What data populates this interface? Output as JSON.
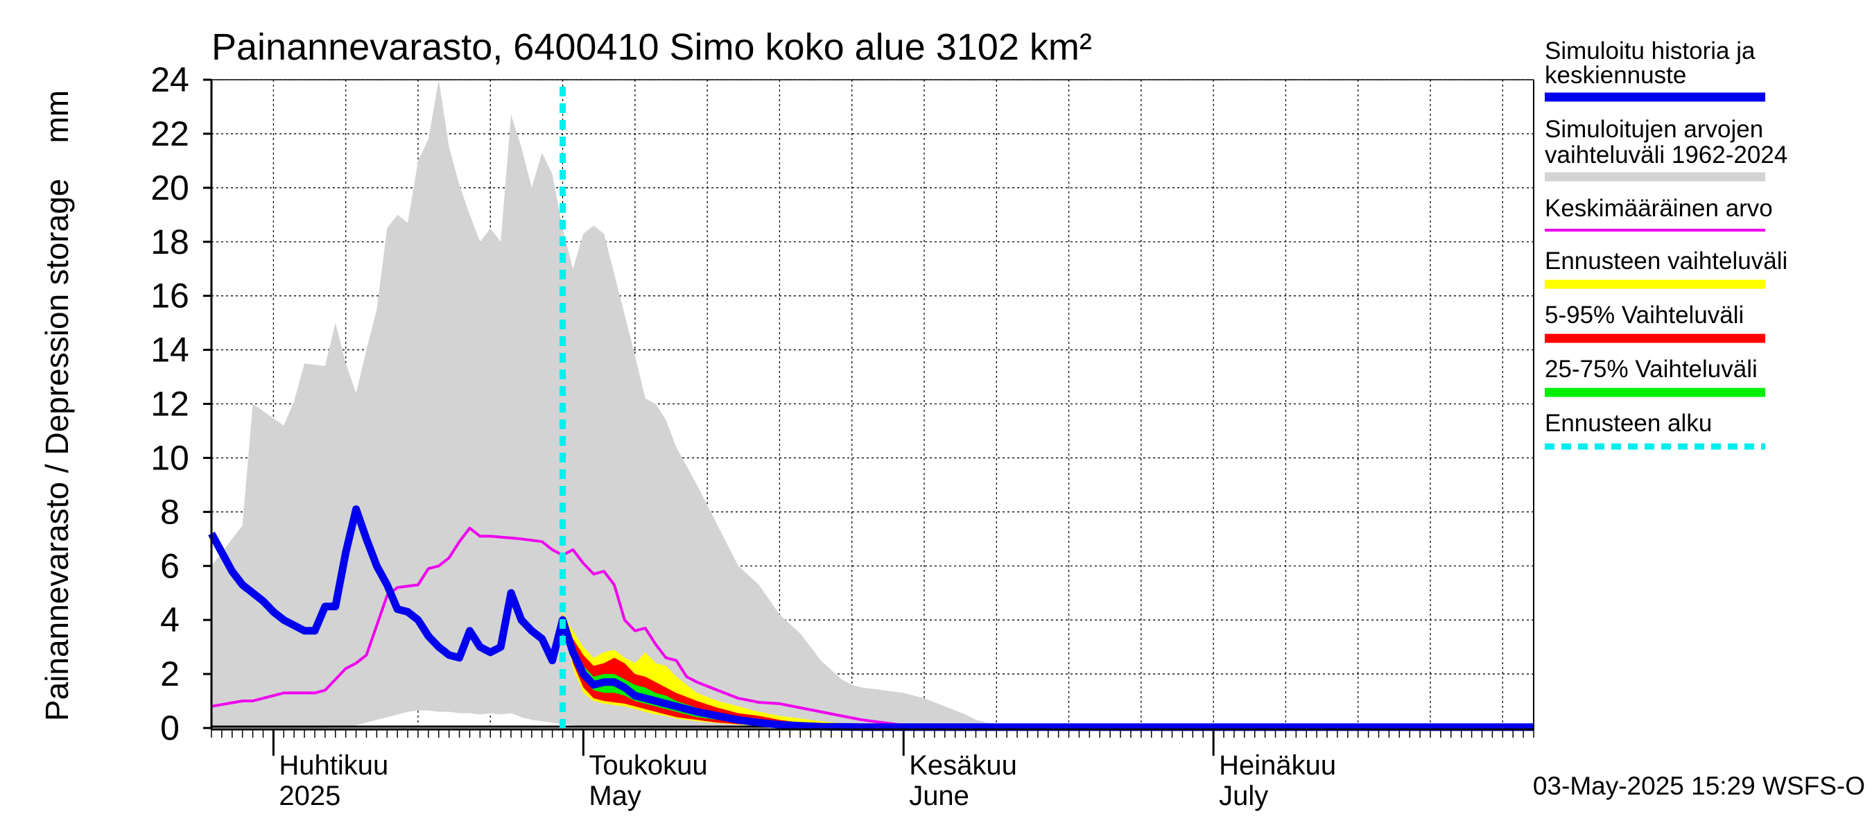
{
  "chart_data": {
    "type": "area",
    "title": "Painannevarasto, 6400410 Simo koko alue 3102 km²",
    "ylabel": "Painannevarasto / Depression storage    mm",
    "xlim": [
      "2025-03-26",
      "2025-08-01"
    ],
    "ylim": [
      0,
      24
    ],
    "y_ticks": [
      0,
      2,
      4,
      6,
      8,
      10,
      12,
      14,
      16,
      18,
      20,
      22,
      24
    ],
    "grid": true,
    "legend_position": "right",
    "month_labels": [
      {
        "date": "2025-04-01",
        "fi": "Huhtikuu",
        "en": "2025"
      },
      {
        "date": "2025-05-01",
        "fi": "Toukokuu",
        "en": "May"
      },
      {
        "date": "2025-06-01",
        "fi": "Kesäkuu",
        "en": "June"
      },
      {
        "date": "2025-07-01",
        "fi": "Heinäkuu",
        "en": "July"
      }
    ],
    "forecast_start": "2025-04-29",
    "footer": "03-May-2025 15:29 WSFS-O",
    "colors": {
      "simulated": "#0000ee",
      "hist_range": "#d3d3d3",
      "mean": "#ee00ee",
      "forecast_range": "#ffff00",
      "p5_95": "#ff0000",
      "p25_75": "#00ee00",
      "forecast_start": "#00eeee"
    },
    "series": [
      {
        "name": "Simuloitujen arvojen vaihteluväli 1962-2024",
        "role": "hist_range",
        "x": [
          "2025-03-26",
          "2025-03-29",
          "2025-03-30",
          "2025-04-02",
          "2025-04-03",
          "2025-04-04",
          "2025-04-06",
          "2025-04-07",
          "2025-04-08",
          "2025-04-09",
          "2025-04-10",
          "2025-04-11",
          "2025-04-12",
          "2025-04-13",
          "2025-04-14",
          "2025-04-15",
          "2025-04-16",
          "2025-04-17",
          "2025-04-18",
          "2025-04-19",
          "2025-04-20",
          "2025-04-21",
          "2025-04-22",
          "2025-04-23",
          "2025-04-24",
          "2025-04-25",
          "2025-04-26",
          "2025-04-27",
          "2025-04-28",
          "2025-04-29",
          "2025-04-30",
          "2025-05-01",
          "2025-05-02",
          "2025-05-03",
          "2025-05-04",
          "2025-05-05",
          "2025-05-06",
          "2025-05-07",
          "2025-05-08",
          "2025-05-09",
          "2025-05-10",
          "2025-05-12",
          "2025-05-14",
          "2025-05-16",
          "2025-05-18",
          "2025-05-20",
          "2025-05-22",
          "2025-05-24",
          "2025-05-26",
          "2025-05-27",
          "2025-05-28",
          "2025-05-30",
          "2025-06-01",
          "2025-06-03",
          "2025-06-05",
          "2025-06-07",
          "2025-06-08",
          "2025-06-09",
          "2025-06-12",
          "2025-06-16",
          "2025-06-20",
          "2025-07-01",
          "2025-08-01"
        ],
        "upper": [
          6.0,
          7.5,
          12.0,
          11.2,
          12.1,
          13.5,
          13.4,
          15.0,
          13.5,
          12.4,
          14.0,
          15.5,
          18.5,
          19.0,
          18.7,
          21.0,
          21.8,
          24.0,
          21.5,
          20.1,
          19.0,
          18.0,
          18.5,
          18.0,
          22.7,
          21.5,
          20.0,
          21.3,
          20.5,
          18.5,
          17.0,
          18.3,
          18.6,
          18.3,
          16.8,
          15.3,
          13.8,
          12.2,
          12.0,
          11.4,
          10.4,
          9.0,
          7.5,
          6.0,
          5.3,
          4.2,
          3.5,
          2.5,
          1.8,
          1.6,
          1.5,
          1.4,
          1.3,
          1.1,
          0.8,
          0.5,
          0.3,
          0.2,
          0.1,
          0.06,
          0.05,
          0.05,
          0.05
        ],
        "lower": [
          0.0,
          0.0,
          0.0,
          0.0,
          0.0,
          0.0,
          0.0,
          0.05,
          0.05,
          0.1,
          0.2,
          0.3,
          0.4,
          0.5,
          0.6,
          0.65,
          0.65,
          0.6,
          0.6,
          0.55,
          0.55,
          0.5,
          0.55,
          0.5,
          0.55,
          0.4,
          0.3,
          0.25,
          0.2,
          0.15,
          0.1,
          0.08,
          0.06,
          0.05,
          0.04,
          0.03,
          0.02,
          0.01,
          0.0,
          0.0,
          0.0,
          0.0,
          0.0,
          0.0,
          0.0,
          0.0,
          0.0,
          0.0,
          0.0,
          0.0,
          0.0,
          0.0,
          0.0,
          0.0,
          0.0,
          0.0,
          0.0,
          0.0,
          0.0,
          0.0,
          0.0,
          0.0,
          0.0
        ]
      },
      {
        "name": "Ennusteen vaihteluväli",
        "role": "forecast_range",
        "x": [
          "2025-04-29",
          "2025-04-30",
          "2025-05-01",
          "2025-05-02",
          "2025-05-03",
          "2025-05-04",
          "2025-05-05",
          "2025-05-06",
          "2025-05-07",
          "2025-05-08",
          "2025-05-09",
          "2025-05-10",
          "2025-05-12",
          "2025-05-14",
          "2025-05-16",
          "2025-05-18",
          "2025-05-20",
          "2025-05-22",
          "2025-05-24",
          "2025-05-26",
          "2025-05-28",
          "2025-05-30",
          "2025-06-01",
          "2025-06-05",
          "2025-06-10",
          "2025-06-20",
          "2025-07-01",
          "2025-08-01"
        ],
        "upper": [
          4.3,
          3.6,
          3.0,
          2.6,
          2.8,
          2.9,
          2.6,
          2.4,
          2.8,
          2.4,
          2.3,
          1.9,
          1.3,
          1.0,
          0.8,
          0.6,
          0.45,
          0.35,
          0.25,
          0.18,
          0.12,
          0.08,
          0.06,
          0.04,
          0.03,
          0.02,
          0.02,
          0.02
        ],
        "lower": [
          4.0,
          2.2,
          1.3,
          1.0,
          0.9,
          0.85,
          0.8,
          0.7,
          0.6,
          0.5,
          0.45,
          0.35,
          0.25,
          0.18,
          0.12,
          0.08,
          0.05,
          0.03,
          0.02,
          0.0,
          0.0,
          0.0,
          0.0,
          0.0,
          0.0,
          0.0,
          0.0,
          0.0
        ]
      },
      {
        "name": "5-95% Vaihteluväli",
        "role": "p5_95",
        "x": [
          "2025-04-29",
          "2025-04-30",
          "2025-05-01",
          "2025-05-02",
          "2025-05-03",
          "2025-05-04",
          "2025-05-05",
          "2025-05-06",
          "2025-05-07",
          "2025-05-08",
          "2025-05-09",
          "2025-05-10",
          "2025-05-12",
          "2025-05-14",
          "2025-05-16",
          "2025-05-18",
          "2025-05-20",
          "2025-05-22",
          "2025-05-24",
          "2025-05-26",
          "2025-05-28",
          "2025-05-30",
          "2025-06-01",
          "2025-06-05",
          "2025-06-10",
          "2025-06-20",
          "2025-07-01",
          "2025-08-01"
        ],
        "upper": [
          4.2,
          3.3,
          2.7,
          2.3,
          2.4,
          2.6,
          2.4,
          2.0,
          1.9,
          1.7,
          1.5,
          1.3,
          1.0,
          0.75,
          0.55,
          0.45,
          0.3,
          0.2,
          0.14,
          0.1,
          0.07,
          0.05,
          0.04,
          0.03,
          0.02,
          0.02,
          0.02,
          0.02
        ],
        "lower": [
          4.0,
          2.4,
          1.5,
          1.1,
          1.0,
          0.95,
          0.9,
          0.8,
          0.7,
          0.6,
          0.5,
          0.4,
          0.3,
          0.2,
          0.14,
          0.1,
          0.06,
          0.04,
          0.03,
          0.02,
          0.01,
          0.0,
          0.0,
          0.0,
          0.0,
          0.0,
          0.0,
          0.0
        ]
      },
      {
        "name": "25-75% Vaihteluväli",
        "role": "p25_75",
        "x": [
          "2025-04-29",
          "2025-04-30",
          "2025-05-01",
          "2025-05-02",
          "2025-05-03",
          "2025-05-04",
          "2025-05-05",
          "2025-05-06",
          "2025-05-07",
          "2025-05-08",
          "2025-05-09",
          "2025-05-10",
          "2025-05-12",
          "2025-05-14",
          "2025-05-16",
          "2025-05-18",
          "2025-05-20",
          "2025-05-22",
          "2025-05-24",
          "2025-05-26",
          "2025-05-28",
          "2025-05-30",
          "2025-06-01",
          "2025-06-05",
          "2025-06-10",
          "2025-06-20",
          "2025-07-01",
          "2025-08-01"
        ],
        "upper": [
          4.1,
          3.0,
          2.3,
          1.9,
          2.0,
          2.0,
          1.8,
          1.6,
          1.5,
          1.3,
          1.2,
          1.0,
          0.75,
          0.55,
          0.4,
          0.3,
          0.2,
          0.14,
          0.1,
          0.07,
          0.05,
          0.04,
          0.03,
          0.02,
          0.02,
          0.02,
          0.02,
          0.02
        ],
        "lower": [
          4.0,
          2.7,
          1.8,
          1.4,
          1.3,
          1.3,
          1.2,
          1.0,
          0.9,
          0.8,
          0.7,
          0.6,
          0.4,
          0.3,
          0.2,
          0.15,
          0.1,
          0.07,
          0.05,
          0.03,
          0.02,
          0.01,
          0.0,
          0.0,
          0.0,
          0.0,
          0.0,
          0.0
        ]
      },
      {
        "name": "Keskimääräinen arvo",
        "role": "mean",
        "x": [
          "2025-03-26",
          "2025-03-29",
          "2025-03-30",
          "2025-04-02",
          "2025-04-04",
          "2025-04-05",
          "2025-04-06",
          "2025-04-07",
          "2025-04-08",
          "2025-04-09",
          "2025-04-10",
          "2025-04-11",
          "2025-04-12",
          "2025-04-13",
          "2025-04-15",
          "2025-04-16",
          "2025-04-17",
          "2025-04-18",
          "2025-04-19",
          "2025-04-20",
          "2025-04-21",
          "2025-04-22",
          "2025-04-25",
          "2025-04-27",
          "2025-04-28",
          "2025-04-29",
          "2025-04-30",
          "2025-05-01",
          "2025-05-02",
          "2025-05-03",
          "2025-05-04",
          "2025-05-05",
          "2025-05-06",
          "2025-05-07",
          "2025-05-08",
          "2025-05-09",
          "2025-05-10",
          "2025-05-11",
          "2025-05-12",
          "2025-05-14",
          "2025-05-16",
          "2025-05-18",
          "2025-05-20",
          "2025-05-22",
          "2025-05-24",
          "2025-05-26",
          "2025-05-28",
          "2025-05-30",
          "2025-06-01",
          "2025-06-05",
          "2025-06-10",
          "2025-06-20",
          "2025-07-01",
          "2025-08-01"
        ],
        "values": [
          0.8,
          1.0,
          1.0,
          1.3,
          1.3,
          1.3,
          1.4,
          1.8,
          2.2,
          2.4,
          2.7,
          3.8,
          4.9,
          5.2,
          5.3,
          5.9,
          6.0,
          6.3,
          6.9,
          7.4,
          7.1,
          7.1,
          7.0,
          6.9,
          6.6,
          6.4,
          6.6,
          6.1,
          5.7,
          5.8,
          5.3,
          4.0,
          3.6,
          3.7,
          3.1,
          2.6,
          2.5,
          1.9,
          1.7,
          1.4,
          1.1,
          0.95,
          0.9,
          0.75,
          0.6,
          0.45,
          0.3,
          0.2,
          0.1,
          0.05,
          0.04,
          0.03,
          0.03,
          0.03
        ]
      },
      {
        "name": "Simuloitu historia ja keskiennuste",
        "role": "simulated",
        "x": [
          "2025-03-26",
          "2025-03-27",
          "2025-03-28",
          "2025-03-29",
          "2025-03-30",
          "2025-03-31",
          "2025-04-01",
          "2025-04-02",
          "2025-04-03",
          "2025-04-04",
          "2025-04-05",
          "2025-04-06",
          "2025-04-07",
          "2025-04-08",
          "2025-04-09",
          "2025-04-10",
          "2025-04-11",
          "2025-04-12",
          "2025-04-13",
          "2025-04-14",
          "2025-04-15",
          "2025-04-16",
          "2025-04-17",
          "2025-04-18",
          "2025-04-19",
          "2025-04-20",
          "2025-04-21",
          "2025-04-22",
          "2025-04-23",
          "2025-04-24",
          "2025-04-25",
          "2025-04-26",
          "2025-04-27",
          "2025-04-28",
          "2025-04-29",
          "2025-04-30",
          "2025-05-01",
          "2025-05-02",
          "2025-05-03",
          "2025-05-04",
          "2025-05-05",
          "2025-05-06",
          "2025-05-07",
          "2025-05-08",
          "2025-05-09",
          "2025-05-10",
          "2025-05-12",
          "2025-05-14",
          "2025-05-16",
          "2025-05-18",
          "2025-05-20",
          "2025-05-22",
          "2025-05-24",
          "2025-05-26",
          "2025-05-28",
          "2025-05-30",
          "2025-06-01",
          "2025-06-05",
          "2025-06-10",
          "2025-06-20",
          "2025-07-01",
          "2025-08-01"
        ],
        "values": [
          7.2,
          6.5,
          5.8,
          5.3,
          5.0,
          4.7,
          4.3,
          4.0,
          3.8,
          3.6,
          3.6,
          4.5,
          4.5,
          6.5,
          8.1,
          7.0,
          6.0,
          5.3,
          4.4,
          4.3,
          4.0,
          3.4,
          3.0,
          2.7,
          2.6,
          3.6,
          3.0,
          2.8,
          3.0,
          5.0,
          4.0,
          3.6,
          3.3,
          2.5,
          4.0,
          2.8,
          2.0,
          1.6,
          1.7,
          1.7,
          1.5,
          1.2,
          1.1,
          1.0,
          0.9,
          0.8,
          0.6,
          0.45,
          0.3,
          0.2,
          0.12,
          0.08,
          0.05,
          0.04,
          0.03,
          0.03,
          0.03,
          0.03,
          0.03,
          0.03,
          0.03,
          0.03
        ]
      }
    ],
    "legend": [
      {
        "key": "simulated",
        "label": "Simuloitu historia ja keskiennuste",
        "line1": "Simuloitu historia ja",
        "line2": "keskiennuste"
      },
      {
        "key": "hist_range",
        "label": "Simuloitujen arvojen vaihteluväli 1962-2024",
        "line1": "Simuloitujen arvojen",
        "line2": "vaihteluväli 1962-2024"
      },
      {
        "key": "mean",
        "label": "Keskimääräinen arvo",
        "line1": "Keskimääräinen arvo",
        "line2": ""
      },
      {
        "key": "forecast_range",
        "label": "Ennusteen vaihteluväli",
        "line1": "Ennusteen vaihteluväli",
        "line2": ""
      },
      {
        "key": "p5_95",
        "label": "5-95% Vaihteluväli",
        "line1": "5-95% Vaihteluväli",
        "line2": ""
      },
      {
        "key": "p25_75",
        "label": "25-75% Vaihteluväli",
        "line1": "25-75% Vaihteluväli",
        "line2": ""
      },
      {
        "key": "forecast_start",
        "label": "Ennusteen alku",
        "line1": "Ennusteen alku",
        "line2": ""
      }
    ]
  }
}
